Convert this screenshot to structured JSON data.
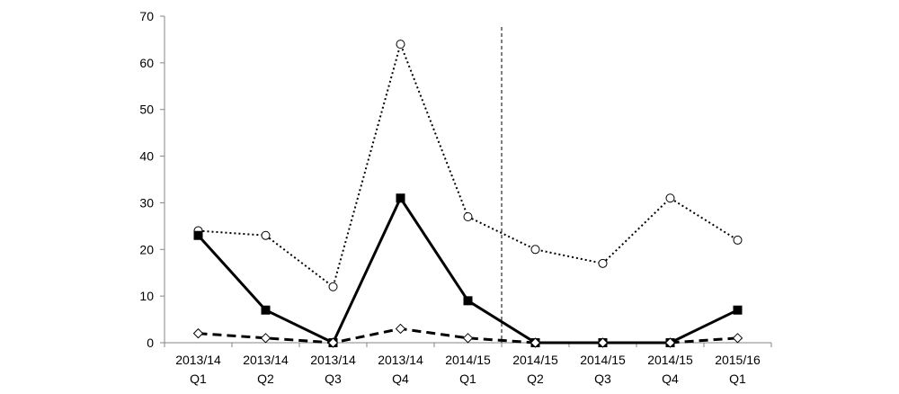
{
  "chart_data": {
    "type": "line",
    "title": "",
    "xlabel": "",
    "ylabel": "",
    "ylim": [
      0,
      70
    ],
    "yticks": [
      0,
      10,
      20,
      30,
      40,
      50,
      60,
      70
    ],
    "grid": false,
    "legend": "none",
    "categories": [
      [
        "2013/14",
        "Q1"
      ],
      [
        "2013/14",
        "Q2"
      ],
      [
        "2013/14",
        "Q3"
      ],
      [
        "2013/14",
        "Q4"
      ],
      [
        "2014/15",
        "Q1"
      ],
      [
        "2014/15",
        "Q2"
      ],
      [
        "2014/15",
        "Q3"
      ],
      [
        "2014/15",
        "Q4"
      ],
      [
        "2015/16",
        "Q1"
      ]
    ],
    "series": [
      {
        "values": [
          24,
          23,
          12,
          64,
          27,
          20,
          17,
          31,
          22
        ],
        "line_style": "dotted",
        "marker": "open-circle",
        "color": "#000000"
      },
      {
        "values": [
          23,
          7,
          0,
          31,
          9,
          0,
          0,
          0,
          7
        ],
        "line_style": "solid",
        "marker": "filled-square",
        "color": "#000000"
      },
      {
        "values": [
          2,
          1,
          0,
          3,
          1,
          0,
          0,
          0,
          1
        ],
        "line_style": "dashed",
        "marker": "open-diamond",
        "color": "#000000"
      }
    ],
    "annotations": [
      {
        "type": "vertical-dashed-line",
        "between_categories": [
          4,
          5
        ]
      }
    ]
  }
}
